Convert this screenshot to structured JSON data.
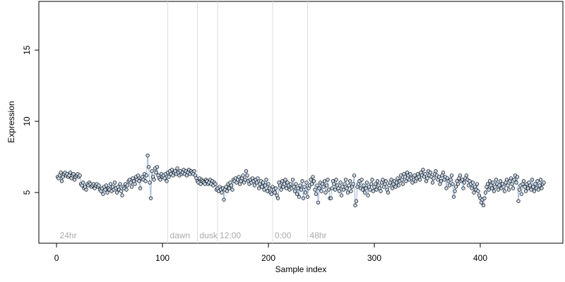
{
  "chart_data": {
    "type": "scatter",
    "x_label": "Sample index",
    "y_label": "Expression",
    "xlim": [
      -16.7,
      478
    ],
    "ylim": [
      1.44,
      18.42
    ],
    "xticks": [
      0,
      100,
      200,
      300,
      400
    ],
    "yticks": [
      5,
      10,
      15
    ],
    "point_fill": "#c4d6ea",
    "line_color": "#9db8d8",
    "point_edge": "#000000",
    "annotation_color": "#aaaaaa",
    "annotation_line_color": "#dddddd",
    "annotations": [
      {
        "x": 1,
        "label": "24hr",
        "line": false
      },
      {
        "x": 105,
        "label": "dawn",
        "line": true
      },
      {
        "x": 133,
        "label": "dusk",
        "line": true
      },
      {
        "x": 152,
        "label": "12:00",
        "line": true
      },
      {
        "x": 204,
        "label": "0:00",
        "line": true
      },
      {
        "x": 237,
        "label": "48hr",
        "line": true
      }
    ],
    "x": [
      1,
      2,
      3,
      4,
      5,
      6,
      7,
      8,
      9,
      10,
      11,
      12,
      13,
      14,
      15,
      16,
      17,
      18,
      19,
      20,
      21,
      22,
      23,
      24,
      25,
      26,
      27,
      28,
      29,
      30,
      31,
      32,
      33,
      34,
      35,
      36,
      37,
      38,
      39,
      40,
      41,
      42,
      43,
      44,
      45,
      46,
      47,
      48,
      49,
      50,
      51,
      52,
      53,
      54,
      55,
      56,
      57,
      58,
      59,
      60,
      61,
      62,
      63,
      64,
      65,
      66,
      67,
      68,
      69,
      70,
      71,
      72,
      73,
      74,
      75,
      76,
      77,
      78,
      79,
      80,
      81,
      82,
      83,
      84,
      85,
      86,
      87,
      88,
      89,
      90,
      91,
      92,
      93,
      94,
      95,
      96,
      97,
      98,
      99,
      100,
      101,
      102,
      103,
      104,
      105,
      106,
      107,
      108,
      109,
      110,
      111,
      112,
      113,
      114,
      115,
      116,
      117,
      118,
      119,
      120,
      121,
      122,
      123,
      124,
      125,
      126,
      127,
      128,
      129,
      130,
      131,
      132,
      133,
      134,
      135,
      136,
      137,
      138,
      139,
      140,
      141,
      142,
      143,
      144,
      145,
      146,
      147,
      148,
      149,
      150,
      151,
      152,
      153,
      154,
      155,
      156,
      157,
      158,
      159,
      160,
      161,
      162,
      163,
      164,
      165,
      166,
      167,
      168,
      169,
      170,
      171,
      172,
      173,
      174,
      175,
      176,
      177,
      178,
      179,
      180,
      181,
      182,
      183,
      184,
      185,
      186,
      187,
      188,
      189,
      190,
      191,
      192,
      193,
      194,
      195,
      196,
      197,
      198,
      199,
      200,
      201,
      202,
      203,
      204,
      205,
      206,
      207,
      208,
      209,
      210,
      211,
      212,
      213,
      214,
      215,
      216,
      217,
      218,
      219,
      220,
      221,
      222,
      223,
      224,
      225,
      226,
      227,
      228,
      229,
      230,
      231,
      232,
      233,
      234,
      235,
      236,
      237,
      238,
      239,
      240,
      241,
      242,
      243,
      244,
      245,
      246,
      247,
      248,
      249,
      250,
      251,
      252,
      253,
      254,
      255,
      256,
      257,
      258,
      259,
      260,
      261,
      262,
      263,
      264,
      265,
      266,
      267,
      268,
      269,
      270,
      271,
      272,
      273,
      274,
      275,
      276,
      277,
      278,
      279,
      280,
      281,
      282,
      283,
      284,
      285,
      286,
      287,
      288,
      289,
      290,
      291,
      292,
      293,
      294,
      295,
      296,
      297,
      298,
      299,
      300,
      301,
      302,
      303,
      304,
      305,
      306,
      307,
      308,
      309,
      310,
      311,
      312,
      313,
      314,
      315,
      316,
      317,
      318,
      319,
      320,
      321,
      322,
      323,
      324,
      325,
      326,
      327,
      328,
      329,
      330,
      331,
      332,
      333,
      334,
      335,
      336,
      337,
      338,
      339,
      340,
      341,
      342,
      343,
      344,
      345,
      346,
      347,
      348,
      349,
      350,
      351,
      352,
      353,
      354,
      355,
      356,
      357,
      358,
      359,
      360,
      361,
      362,
      363,
      364,
      365,
      366,
      367,
      368,
      369,
      370,
      371,
      372,
      373,
      374,
      375,
      376,
      377,
      378,
      379,
      380,
      381,
      382,
      383,
      384,
      385,
      386,
      387,
      388,
      389,
      390,
      391,
      392,
      393,
      394,
      395,
      396,
      397,
      398,
      399,
      400,
      401,
      402,
      403,
      404,
      405,
      406,
      407,
      408,
      409,
      410,
      411,
      412,
      413,
      414,
      415,
      416,
      417,
      418,
      419,
      420,
      421,
      422,
      423,
      424,
      425,
      426,
      427,
      428,
      429,
      430,
      431,
      432,
      433,
      434,
      435,
      436,
      437,
      438,
      439,
      440,
      441,
      442,
      443,
      444,
      445,
      446,
      447,
      448,
      449,
      450,
      451,
      452,
      453,
      454,
      455,
      456,
      457,
      458,
      459,
      460
    ],
    "values": [
      6.1,
      6.0,
      6.2,
      6.4,
      5.8,
      6.1,
      6.3,
      6.4,
      6.2,
      6.3,
      6.1,
      6.2,
      6.4,
      6.0,
      6.2,
      6.3,
      5.9,
      6.1,
      6.2,
      6.3,
      6.1,
      6.2,
      5.6,
      5.5,
      5.7,
      5.3,
      5.4,
      5.2,
      5.6,
      5.5,
      5.7,
      5.6,
      5.4,
      5.5,
      5.6,
      5.3,
      5.5,
      5.6,
      5.4,
      5.5,
      5.2,
      5.1,
      5.3,
      4.9,
      5.4,
      5.2,
      5.5,
      5.0,
      5.3,
      5.2,
      5.6,
      5.1,
      5.4,
      5.2,
      5.7,
      5.3,
      5.0,
      5.4,
      5.2,
      5.6,
      5.1,
      4.8,
      5.4,
      5.3,
      5.6,
      5.2,
      5.5,
      5.8,
      5.9,
      5.7,
      5.4,
      6.0,
      5.8,
      5.6,
      6.1,
      5.9,
      6.2,
      5.8,
      5.3,
      6.0,
      6.1,
      5.9,
      6.3,
      5.8,
      6.2,
      7.6,
      6.8,
      5.7,
      4.6,
      6.5,
      6.1,
      5.9,
      6.7,
      6.4,
      6.8,
      6.2,
      6.0,
      5.9,
      6.3,
      6.1,
      6.2,
      6.0,
      6.3,
      5.8,
      6.4,
      6.1,
      6.5,
      6.3,
      6.6,
      6.2,
      6.4,
      6.5,
      6.3,
      6.7,
      6.4,
      6.2,
      6.5,
      6.3,
      6.4,
      6.6,
      6.3,
      6.5,
      6.2,
      6.4,
      6.6,
      6.3,
      6.5,
      6.4,
      6.3,
      6.5,
      6.2,
      6.0,
      5.8,
      5.7,
      6.0,
      5.6,
      5.9,
      5.8,
      5.7,
      5.6,
      5.9,
      5.8,
      5.6,
      5.7,
      5.9,
      5.6,
      5.8,
      5.5,
      5.7,
      5.6,
      5.2,
      5.3,
      5.1,
      5.4,
      5.2,
      5.0,
      5.3,
      4.5,
      5.2,
      5.4,
      5.1,
      5.6,
      5.3,
      5.7,
      5.5,
      5.2,
      5.9,
      5.8,
      6.0,
      5.7,
      5.9,
      6.1,
      5.6,
      5.8,
      6.0,
      6.2,
      5.7,
      5.9,
      6.5,
      6.2,
      5.8,
      5.6,
      5.9,
      5.7,
      6.0,
      5.8,
      5.5,
      5.9,
      5.7,
      6.0,
      5.3,
      5.6,
      5.8,
      5.4,
      5.7,
      5.2,
      5.5,
      5.9,
      5.1,
      5.6,
      5.3,
      5.0,
      4.9,
      5.4,
      5.2,
      5.0,
      5.3,
      4.8,
      4.6,
      5.7,
      5.5,
      5.2,
      5.8,
      5.4,
      5.6,
      5.9,
      5.3,
      5.7,
      5.5,
      5.2,
      5.6,
      5.3,
      5.9,
      5.4,
      5.1,
      5.6,
      4.9,
      5.3,
      4.7,
      5.5,
      5.2,
      5.8,
      4.6,
      5.4,
      5.0,
      5.7,
      4.7,
      5.3,
      5.5,
      5.9,
      5.6,
      6.1,
      5.8,
      5.2,
      4.9,
      5.5,
      4.3,
      5.3,
      5.7,
      5.1,
      5.6,
      5.4,
      5.8,
      5.0,
      5.5,
      5.9,
      5.2,
      4.6,
      4.6,
      5.3,
      5.8,
      5.6,
      5.2,
      5.9,
      5.5,
      5.3,
      5.1,
      5.7,
      4.8,
      5.4,
      5.2,
      5.6,
      5.9,
      5.3,
      5.0,
      5.5,
      5.8,
      5.1,
      5.4,
      5.6,
      6.2,
      4.1,
      4.4,
      5.4,
      5.6,
      5.8,
      5.3,
      5.9,
      5.2,
      5.5,
      5.0,
      5.3,
      5.7,
      4.8,
      5.4,
      5.2,
      5.6,
      5.9,
      5.1,
      5.4,
      5.6,
      5.2,
      5.8,
      5.5,
      5.3,
      5.1,
      5.7,
      5.9,
      5.4,
      5.6,
      5.8,
      5.2,
      5.0,
      5.5,
      5.7,
      5.9,
      5.3,
      5.6,
      5.8,
      5.4,
      5.7,
      6.0,
      5.5,
      5.8,
      6.2,
      5.9,
      5.6,
      6.3,
      6.1,
      5.8,
      6.4,
      6.2,
      5.9,
      6.3,
      6.0,
      5.7,
      6.1,
      6.2,
      5.8,
      6.0,
      6.3,
      6.1,
      5.9,
      6.4,
      6.2,
      6.6,
      6.1,
      6.3,
      5.8,
      6.0,
      6.5,
      6.2,
      6.4,
      6.1,
      5.7,
      6.0,
      6.3,
      6.5,
      6.2,
      5.9,
      6.1,
      5.6,
      5.8,
      6.2,
      6.4,
      5.9,
      6.1,
      5.3,
      6.0,
      5.8,
      5.5,
      5.9,
      6.2,
      5.6,
      4.7,
      5.1,
      5.4,
      5.8,
      5.6,
      6.0,
      6.2,
      5.8,
      5.9,
      5.3,
      5.7,
      6.0,
      6.2,
      5.9,
      5.5,
      5.8,
      5.6,
      5.3,
      5.7,
      5.0,
      5.4,
      5.2,
      5.6,
      5.1,
      4.8,
      4.6,
      4.3,
      4.5,
      4.1,
      4.6,
      5.0,
      5.4,
      5.6,
      5.2,
      5.8,
      5.5,
      5.3,
      5.7,
      5.1,
      5.4,
      5.9,
      5.6,
      5.2,
      5.5,
      5.8,
      5.3,
      5.6,
      5.4,
      5.1,
      5.7,
      5.9,
      5.5,
      5.2,
      5.8,
      6.0,
      5.6,
      5.3,
      5.9,
      6.2,
      5.7,
      6.1,
      4.4,
      5.2,
      5.5,
      4.9,
      5.6,
      5.8,
      5.4,
      5.1,
      5.6,
      5.3,
      5.7,
      5.5,
      5.2,
      5.9,
      5.4,
      5.1,
      5.6,
      5.3,
      5.8,
      5.2,
      5.5,
      5.9,
      5.3,
      5.6,
      5.7
    ]
  }
}
